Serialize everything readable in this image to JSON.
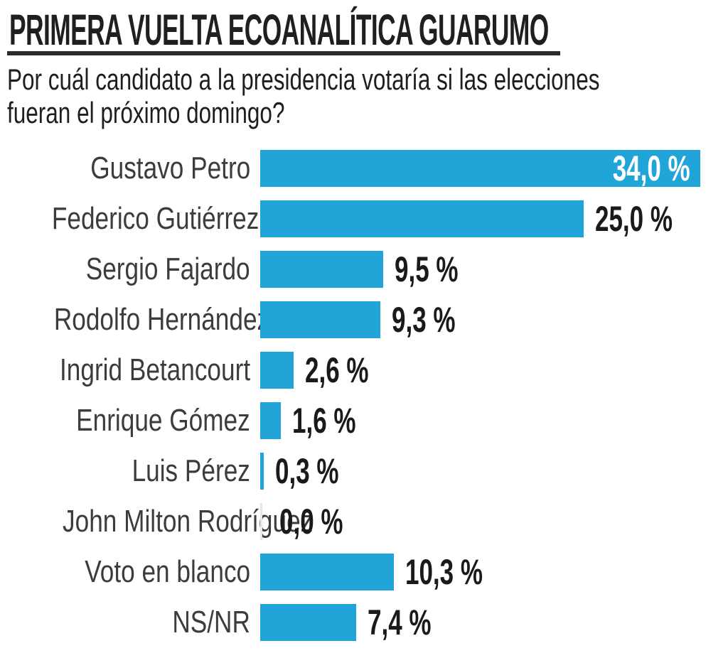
{
  "header": {
    "title": "PRIMERA VUELTA ECOANALÍTICA GUARUMO",
    "subtitle_lines": [
      "Por cuál candidato a la presidencia votaría si las elecciones",
      "fueran el próximo domingo?"
    ]
  },
  "colors": {
    "background": "#FFFFFF",
    "bar": "#21A4D8",
    "zero_bar": "#E7E7E7",
    "value_text": "#1A1A1A",
    "value_text_inside": "#FFFFFF",
    "label_text": "#3C3C3C",
    "title_text": "#1F1F1F",
    "subtitle_text": "#1E1E1E",
    "underline": "#2B2B2B"
  },
  "chart_data": {
    "type": "bar",
    "orientation": "horizontal",
    "title": "PRIMERA VUELTA ECOANALÍTICA GUARUMO",
    "question": "Por cuál candidato a la presidencia votaría si las elecciones fueran el próximo domingo?",
    "value_unit": "%",
    "decimal_separator": ",",
    "xlim": [
      0,
      34
    ],
    "grid": false,
    "legend": false,
    "categories": [
      "Gustavo Petro",
      "Federico Gutiérrez",
      "Sergio Fajardo",
      "Rodolfo Hernández",
      "Ingrid Betancourt",
      "Enrique Gómez",
      "Luis Pérez",
      "John Milton Rodríguez",
      "Voto en blanco",
      "NS/NR"
    ],
    "values": [
      34.0,
      25.0,
      9.5,
      9.3,
      2.6,
      1.6,
      0.3,
      0.0,
      10.3,
      7.4
    ],
    "bars": [
      {
        "label": "Gustavo Petro",
        "value": 34.0,
        "display": "34,0 %",
        "value_label_inside": true
      },
      {
        "label": "Federico Gutiérrez",
        "value": 25.0,
        "display": "25,0 %",
        "value_label_inside": false
      },
      {
        "label": "Sergio Fajardo",
        "value": 9.5,
        "display": "9,5 %",
        "value_label_inside": false
      },
      {
        "label": "Rodolfo Hernández",
        "value": 9.3,
        "display": "9,3 %",
        "value_label_inside": false
      },
      {
        "label": "Ingrid Betancourt",
        "value": 2.6,
        "display": "2,6 %",
        "value_label_inside": false
      },
      {
        "label": "Enrique Gómez",
        "value": 1.6,
        "display": "1,6 %",
        "value_label_inside": false
      },
      {
        "label": "Luis Pérez",
        "value": 0.3,
        "display": "0,3 %",
        "value_label_inside": false
      },
      {
        "label": "John Milton Rodríguez",
        "value": 0.0,
        "display": "0,0 %",
        "value_label_inside": false
      },
      {
        "label": "Voto en blanco",
        "value": 10.3,
        "display": "10,3 %",
        "value_label_inside": false
      },
      {
        "label": "NS/NR",
        "value": 7.4,
        "display": "7,4 %",
        "value_label_inside": false
      }
    ]
  }
}
